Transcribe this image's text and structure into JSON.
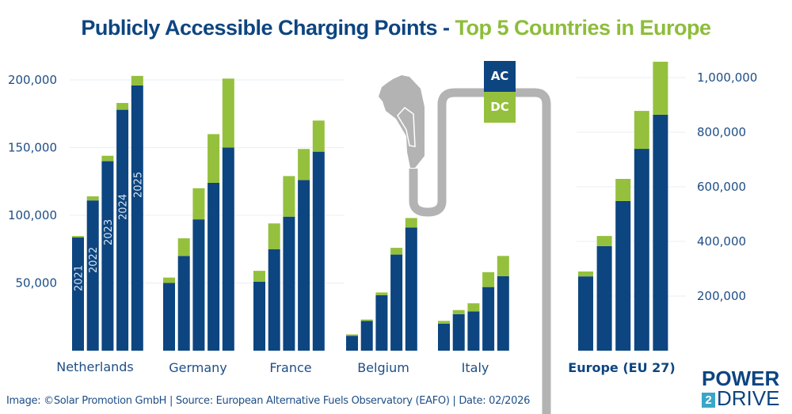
{
  "title": {
    "part1": "Publicly Accessible Charging Points - ",
    "part2": "Top 5 Countries in Europe"
  },
  "legend": {
    "ac_label": "AC",
    "dc_label": "DC"
  },
  "footer": "Image: ©Solar Promotion GmbH | Source: European Alternative Fuels Observatory (EAFO) | Date: 02/2026",
  "logo": {
    "line1": "POWER",
    "number": "2",
    "line2": "DRIVE"
  },
  "colors": {
    "ac": "#0d4580",
    "dc": "#95c03d",
    "title_blue": "#0d4580",
    "title_green": "#8dbd3a",
    "cable": "#b3b3b3",
    "grid": "#e8eff6"
  },
  "chart_data": [
    {
      "type": "bar",
      "stacked": true,
      "title": "Publicly Accessible Charging Points - Top 5 Countries",
      "ylabel": "",
      "ylim": [
        0,
        200000
      ],
      "yticks": [
        "50,000",
        "100,000",
        "150,000",
        "200,000"
      ],
      "ytick_values": [
        50000,
        100000,
        150000,
        200000
      ],
      "grid": true,
      "legend_position": "top-center",
      "years": [
        "2021",
        "2022",
        "2023",
        "2024",
        "2025"
      ],
      "categories": [
        "Netherlands",
        "Germany",
        "France",
        "Belgium",
        "Italy"
      ],
      "series": [
        {
          "name": "AC",
          "values": {
            "Netherlands": [
              83600,
              111000,
              140000,
              178000,
              196000
            ],
            "Germany": [
              50000,
              70000,
              97000,
              124000,
              150000
            ],
            "France": [
              51000,
              75000,
              99000,
              126000,
              147000
            ],
            "Belgium": [
              11000,
              22000,
              41000,
              71000,
              91000
            ],
            "Italy": [
              20000,
              27000,
              29000,
              47000,
              55000
            ]
          }
        },
        {
          "name": "DC",
          "values": {
            "Netherlands": [
              1100,
              3000,
              4000,
              5000,
              7000
            ],
            "Germany": [
              4000,
              13000,
              23000,
              36000,
              51000
            ],
            "France": [
              8000,
              19000,
              30000,
              23000,
              23000
            ],
            "Belgium": [
              1000,
              1000,
              2000,
              5000,
              7000
            ],
            "Italy": [
              2000,
              3000,
              6000,
              11000,
              15000
            ]
          }
        }
      ]
    },
    {
      "type": "bar",
      "stacked": true,
      "title": "Europe (EU 27)",
      "ylim": [
        0,
        1000000
      ],
      "yticks": [
        "200,000",
        "400,000",
        "600,000",
        "800,000",
        "1,000,000"
      ],
      "ytick_values": [
        200000,
        400000,
        600000,
        800000,
        1000000
      ],
      "grid": true,
      "axis_side": "right",
      "years": [
        "2021",
        "2022",
        "2023",
        "2024",
        "2025"
      ],
      "categories": [
        "Europe (EU 27)"
      ],
      "series": [
        {
          "name": "AC",
          "values": {
            "Europe (EU 27)": [
              272000,
              383000,
              548000,
              739000,
              864000
            ]
          }
        },
        {
          "name": "DC",
          "values": {
            "Europe (EU 27)": [
              18000,
              37000,
              81000,
              139000,
              194000
            ]
          }
        }
      ]
    }
  ]
}
